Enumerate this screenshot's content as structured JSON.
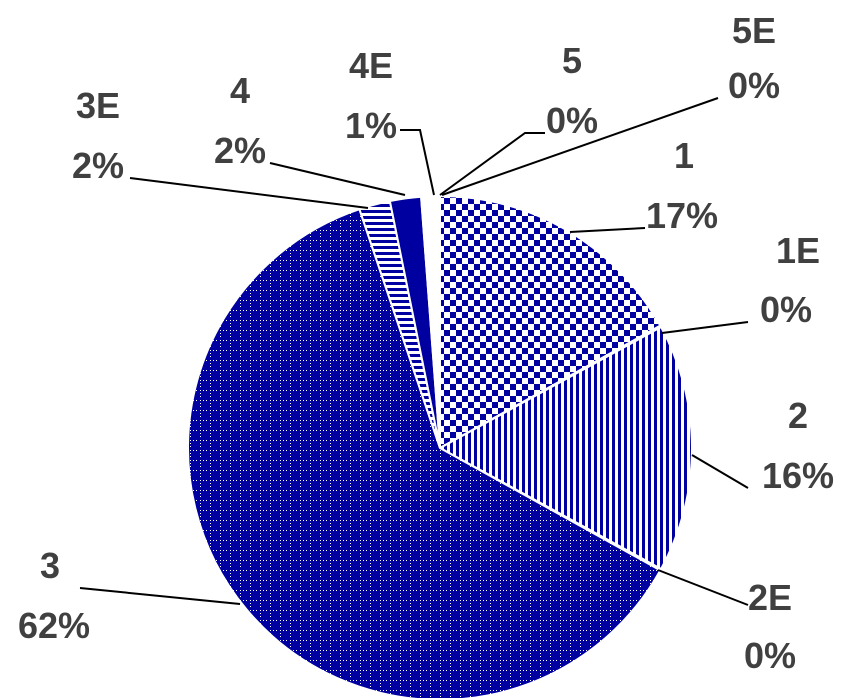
{
  "chart_data": {
    "type": "pie",
    "title": "",
    "slices": [
      {
        "label": "1",
        "value": 17,
        "percent_label": "17%",
        "color": "#0000a0",
        "pattern": "checker"
      },
      {
        "label": "1E",
        "value": 0.1,
        "percent_label": "0%",
        "color": "#0000a0",
        "pattern": "solid"
      },
      {
        "label": "2",
        "value": 16,
        "percent_label": "16%",
        "color": "#0000a0",
        "pattern": "vertical-lines"
      },
      {
        "label": "2E",
        "value": 0.1,
        "percent_label": "0%",
        "color": "#0000a0",
        "pattern": "solid"
      },
      {
        "label": "3",
        "value": 62,
        "percent_label": "62%",
        "color": "#0000a0",
        "pattern": "dotted-grid"
      },
      {
        "label": "3E",
        "value": 2,
        "percent_label": "2%",
        "color": "#0000a0",
        "pattern": "horizontal-lines"
      },
      {
        "label": "4",
        "value": 2,
        "percent_label": "2%",
        "color": "#0000a0",
        "pattern": "solid"
      },
      {
        "label": "4E",
        "value": 1,
        "percent_label": "1%",
        "color": "#ffffff",
        "pattern": "solid"
      },
      {
        "label": "5",
        "value": 0.1,
        "percent_label": "0%",
        "color": "#0000a0",
        "pattern": "solid"
      },
      {
        "label": "5E",
        "value": 0.1,
        "percent_label": "0%",
        "color": "#ffffff",
        "pattern": "solid"
      }
    ],
    "legend": "none",
    "data_labels": "category and percentage, outside with leader lines"
  }
}
